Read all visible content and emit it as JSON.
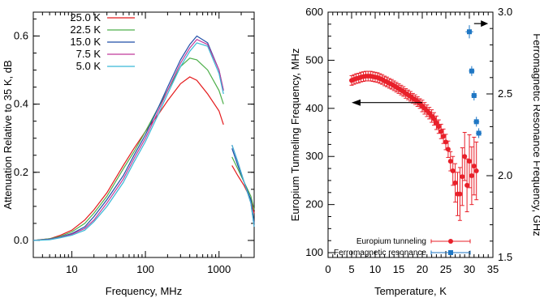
{
  "chart_data": [
    {
      "type": "line",
      "xlabel": "Frequency, MHz",
      "ylabel": "Attenuation Relative to 35 K, dB",
      "xscale": "log",
      "xlim": [
        3,
        3000
      ],
      "ylim": [
        -0.05,
        0.67
      ],
      "xticks": [
        10,
        100,
        1000
      ],
      "xtick_labels": [
        "10",
        "100",
        "1000"
      ],
      "yticks": [
        0.0,
        0.2,
        0.4,
        0.6
      ],
      "ytick_labels": [
        "0.0",
        "0.2",
        "0.4",
        "0.6"
      ],
      "grid": false,
      "legend_position": "top-left",
      "series": [
        {
          "name": "25.0 K",
          "color": "#e41a1c",
          "x": [
            3,
            5,
            7,
            10,
            15,
            20,
            30,
            50,
            70,
            100,
            150,
            200,
            300,
            400,
            500,
            700,
            1000,
            1150
          ],
          "y": [
            0.0,
            0.005,
            0.015,
            0.03,
            0.06,
            0.09,
            0.14,
            0.22,
            0.27,
            0.32,
            0.37,
            0.41,
            0.46,
            0.48,
            0.47,
            0.43,
            0.38,
            0.34
          ],
          "x2": [
            1500,
            1800,
            2200,
            2700,
            3000
          ],
          "y2": [
            0.22,
            0.19,
            0.16,
            0.12,
            0.08
          ]
        },
        {
          "name": "22.5 K",
          "color": "#4daf4a",
          "x": [
            3,
            5,
            7,
            10,
            15,
            20,
            30,
            50,
            70,
            100,
            150,
            200,
            300,
            400,
            500,
            700,
            1000,
            1150
          ],
          "y": [
            0.0,
            0.005,
            0.012,
            0.025,
            0.05,
            0.08,
            0.13,
            0.21,
            0.26,
            0.32,
            0.39,
            0.44,
            0.51,
            0.535,
            0.53,
            0.5,
            0.44,
            0.4
          ],
          "x2": [
            1500,
            1800,
            2200,
            2700,
            3000
          ],
          "y2": [
            0.245,
            0.21,
            0.17,
            0.13,
            0.09
          ]
        },
        {
          "name": "15.0 K",
          "color": "#1f4ea8",
          "x": [
            3,
            5,
            7,
            10,
            15,
            20,
            30,
            50,
            70,
            100,
            150,
            200,
            300,
            400,
            500,
            700,
            1000,
            1150
          ],
          "y": [
            0.0,
            0.004,
            0.01,
            0.02,
            0.04,
            0.07,
            0.12,
            0.19,
            0.25,
            0.31,
            0.39,
            0.45,
            0.53,
            0.575,
            0.6,
            0.58,
            0.5,
            0.44
          ],
          "x2": [
            1500,
            1800,
            2200,
            2700,
            3000
          ],
          "y2": [
            0.27,
            0.22,
            0.17,
            0.12,
            0.05
          ]
        },
        {
          "name": "7.5 K",
          "color": "#c0399a",
          "x": [
            3,
            5,
            7,
            10,
            15,
            20,
            30,
            50,
            70,
            100,
            150,
            200,
            300,
            400,
            500,
            700,
            1000,
            1150
          ],
          "y": [
            0.0,
            0.003,
            0.009,
            0.018,
            0.035,
            0.06,
            0.11,
            0.18,
            0.24,
            0.3,
            0.38,
            0.44,
            0.52,
            0.565,
            0.59,
            0.575,
            0.5,
            0.44
          ],
          "x2": [
            1500,
            1800,
            2200,
            2700,
            3000
          ],
          "y2": [
            0.28,
            0.23,
            0.17,
            0.11,
            0.04
          ]
        },
        {
          "name": "5.0 K",
          "color": "#39b8d6",
          "x": [
            3,
            5,
            7,
            10,
            15,
            20,
            30,
            50,
            70,
            100,
            150,
            200,
            300,
            400,
            500,
            700,
            1000,
            1150
          ],
          "y": [
            0.0,
            0.002,
            0.008,
            0.015,
            0.03,
            0.055,
            0.1,
            0.17,
            0.23,
            0.29,
            0.37,
            0.43,
            0.51,
            0.555,
            0.58,
            0.57,
            0.49,
            0.43
          ],
          "x2": [
            1500,
            1800,
            2200,
            2700,
            3000
          ],
          "y2": [
            0.28,
            0.23,
            0.17,
            0.11,
            0.04
          ]
        }
      ]
    },
    {
      "type": "scatter",
      "xlabel": "Temperature, K",
      "ylabel": "Europium Tunneling Frequency, MHz",
      "ylabel_right": "Ferromagnetic Resonance Frequency, GHz",
      "xlim": [
        0,
        35
      ],
      "ylim": [
        90,
        600
      ],
      "ylim_right": [
        1.5,
        3.0
      ],
      "xticks": [
        0,
        5,
        10,
        15,
        20,
        25,
        30,
        35
      ],
      "xtick_labels": [
        "0",
        "5",
        "10",
        "15",
        "20",
        "25",
        "30",
        "35"
      ],
      "yticks": [
        100,
        200,
        300,
        400,
        500,
        600
      ],
      "ytick_labels": [
        "100",
        "200",
        "300",
        "400",
        "500",
        "600"
      ],
      "yticks_right": [
        1.5,
        2.0,
        2.5,
        3.0
      ],
      "ytick_labels_right": [
        "1.5",
        "2.0",
        "2.5",
        "3.0"
      ],
      "grid": false,
      "legend_position": "bottom-right",
      "series": [
        {
          "name": "Europium tunneling",
          "axis": "left",
          "color": "#e8202a",
          "x": [
            5.0,
            5.5,
            6.0,
            6.5,
            7.0,
            7.5,
            8.0,
            8.5,
            9.0,
            9.5,
            10.0,
            10.5,
            11.0,
            11.5,
            12.0,
            12.5,
            13.0,
            13.5,
            14.0,
            14.5,
            15.0,
            15.5,
            16.0,
            16.5,
            17.0,
            17.5,
            18.0,
            18.5,
            19.0,
            19.5,
            20.0,
            20.5,
            21.0,
            21.5,
            22.0,
            22.5,
            23.0,
            23.5,
            24.0,
            24.5,
            25.0,
            25.5,
            26.0,
            26.5,
            27.0,
            27.5,
            28.0,
            28.5,
            29.0,
            29.5,
            30.0,
            30.5,
            31.0,
            31.5
          ],
          "y": [
            458,
            460,
            462,
            463,
            465,
            466,
            467,
            467,
            467,
            466,
            465,
            464,
            462,
            460,
            457,
            455,
            452,
            450,
            447,
            444,
            441,
            438,
            435,
            431,
            428,
            425,
            421,
            418,
            414,
            410,
            405,
            400,
            395,
            390,
            384,
            378,
            370,
            362,
            352,
            342,
            330,
            315,
            290,
            270,
            245,
            222,
            222,
            258,
            300,
            240,
            290,
            260,
            280,
            270
          ],
          "yerr": [
            10,
            10,
            10,
            10,
            10,
            10,
            10,
            10,
            10,
            10,
            10,
            10,
            10,
            10,
            10,
            10,
            10,
            10,
            10,
            10,
            10,
            10,
            10,
            10,
            10,
            10,
            10,
            10,
            10,
            10,
            12,
            12,
            12,
            12,
            13,
            13,
            14,
            14,
            15,
            15,
            16,
            17,
            20,
            30,
            40,
            45,
            55,
            60,
            50,
            55,
            55,
            60,
            60,
            60
          ]
        },
        {
          "name": "Ferromagnetic resonance",
          "axis": "right",
          "color": "#1f77c4",
          "x": [
            30.0,
            30.5,
            31.0,
            31.5,
            32.0
          ],
          "y": [
            2.88,
            2.64,
            2.49,
            2.33,
            2.26
          ],
          "yerr": [
            0.04,
            0.03,
            0.03,
            0.03,
            0.03
          ],
          "xerr": [
            0.8,
            0.6,
            0.6,
            0.6,
            0.6
          ]
        }
      ],
      "annotations": [
        {
          "kind": "arrow",
          "direction": "left",
          "x": [
            20,
            5
          ],
          "y": [
            412,
            412
          ],
          "axis": "left"
        },
        {
          "kind": "arrow",
          "direction": "right",
          "x": [
            31,
            34
          ],
          "y": [
            2.93,
            2.93
          ],
          "axis": "right"
        }
      ]
    }
  ]
}
